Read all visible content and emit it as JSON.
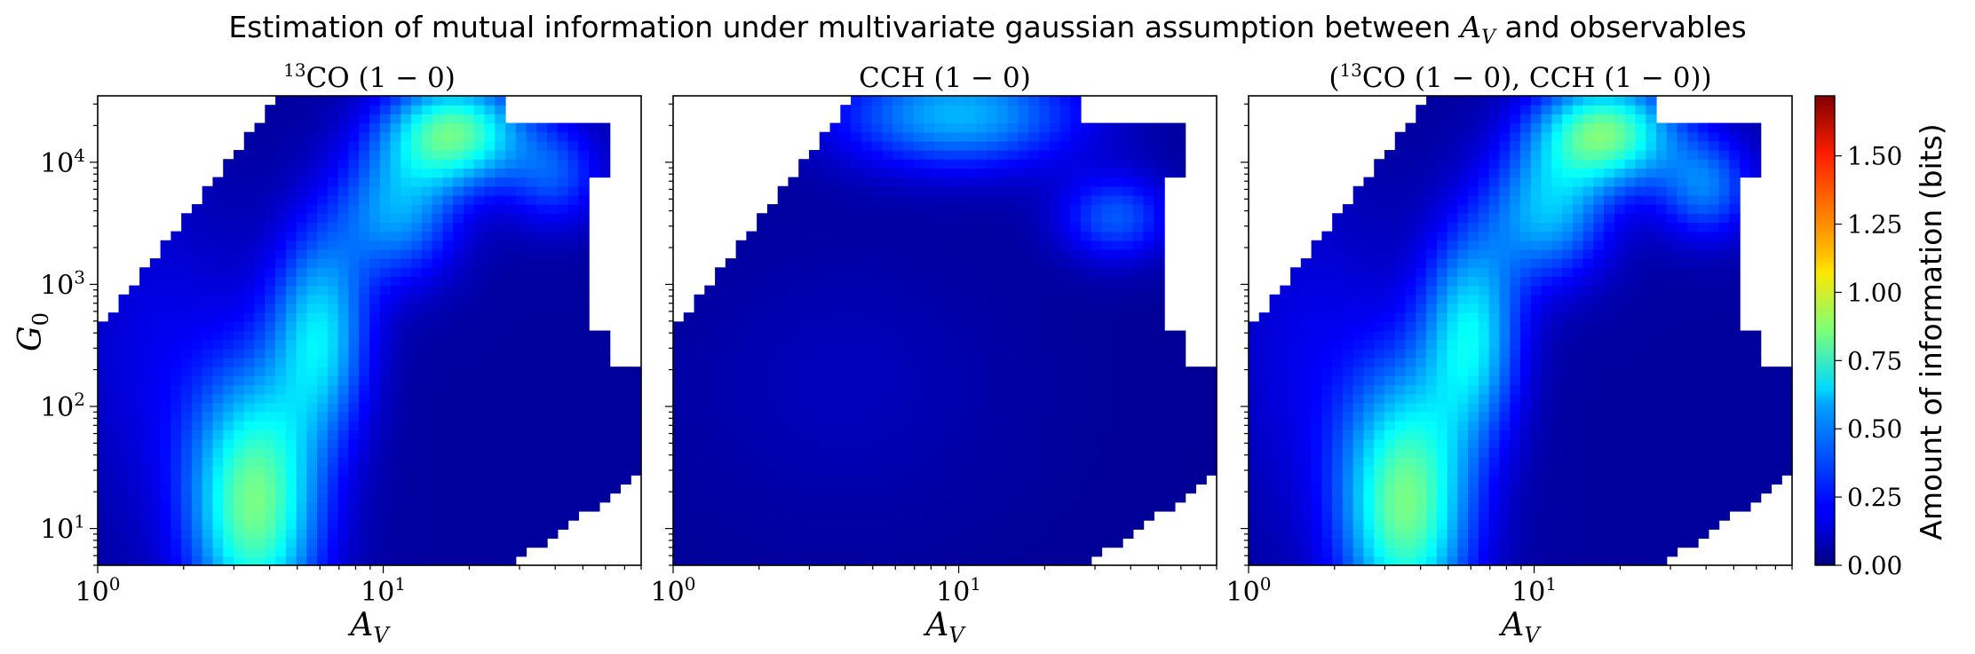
{
  "chart_data": {
    "type": "heatmap",
    "title": "Estimation of mutual information under multivariate gaussian assumption between A_V and observables",
    "title_parts": {
      "before": "Estimation of mutual information under multivariate gaussian assumption between ",
      "var": "A",
      "sub": "V",
      "after": " and observables"
    },
    "x_scale": "log",
    "y_scale": "log",
    "xlim": [
      1,
      80
    ],
    "ylim": [
      5,
      35000
    ],
    "grid": false,
    "colormap": "jet",
    "panels": [
      {
        "id": "13co",
        "title_sup": "13",
        "title": "CO (1 − 0)",
        "xlabel": "A",
        "xlabel_sub": "V",
        "ylabel": "G",
        "ylabel_sub": "0",
        "value_range": [
          0.1,
          1.05
        ]
      },
      {
        "id": "cch",
        "title": "CCH (1 − 0)",
        "xlabel": "A",
        "xlabel_sub": "V",
        "value_range": [
          0.05,
          0.6
        ]
      },
      {
        "id": "combined",
        "title_prefix": "(",
        "title_sup": "13",
        "title": "CO (1 − 0), CCH (1 − 0))",
        "xlabel": "A",
        "xlabel_sub": "V",
        "value_range": [
          0.1,
          1.05
        ]
      }
    ],
    "x_ticks": [
      {
        "value": 1,
        "base": "10",
        "exp": "0"
      },
      {
        "value": 10,
        "base": "10",
        "exp": "1"
      }
    ],
    "y_ticks": [
      {
        "value": 10,
        "base": "10",
        "exp": "1"
      },
      {
        "value": 100,
        "base": "10",
        "exp": "2"
      },
      {
        "value": 1000,
        "base": "10",
        "exp": "3"
      },
      {
        "value": 10000,
        "base": "10",
        "exp": "4"
      }
    ],
    "colorbar": {
      "label": "Amount of information (bits)",
      "range": [
        0,
        1.72
      ],
      "ticks": [
        "0.00",
        "0.25",
        "0.50",
        "0.75",
        "1.00",
        "1.25",
        "1.50"
      ]
    }
  }
}
